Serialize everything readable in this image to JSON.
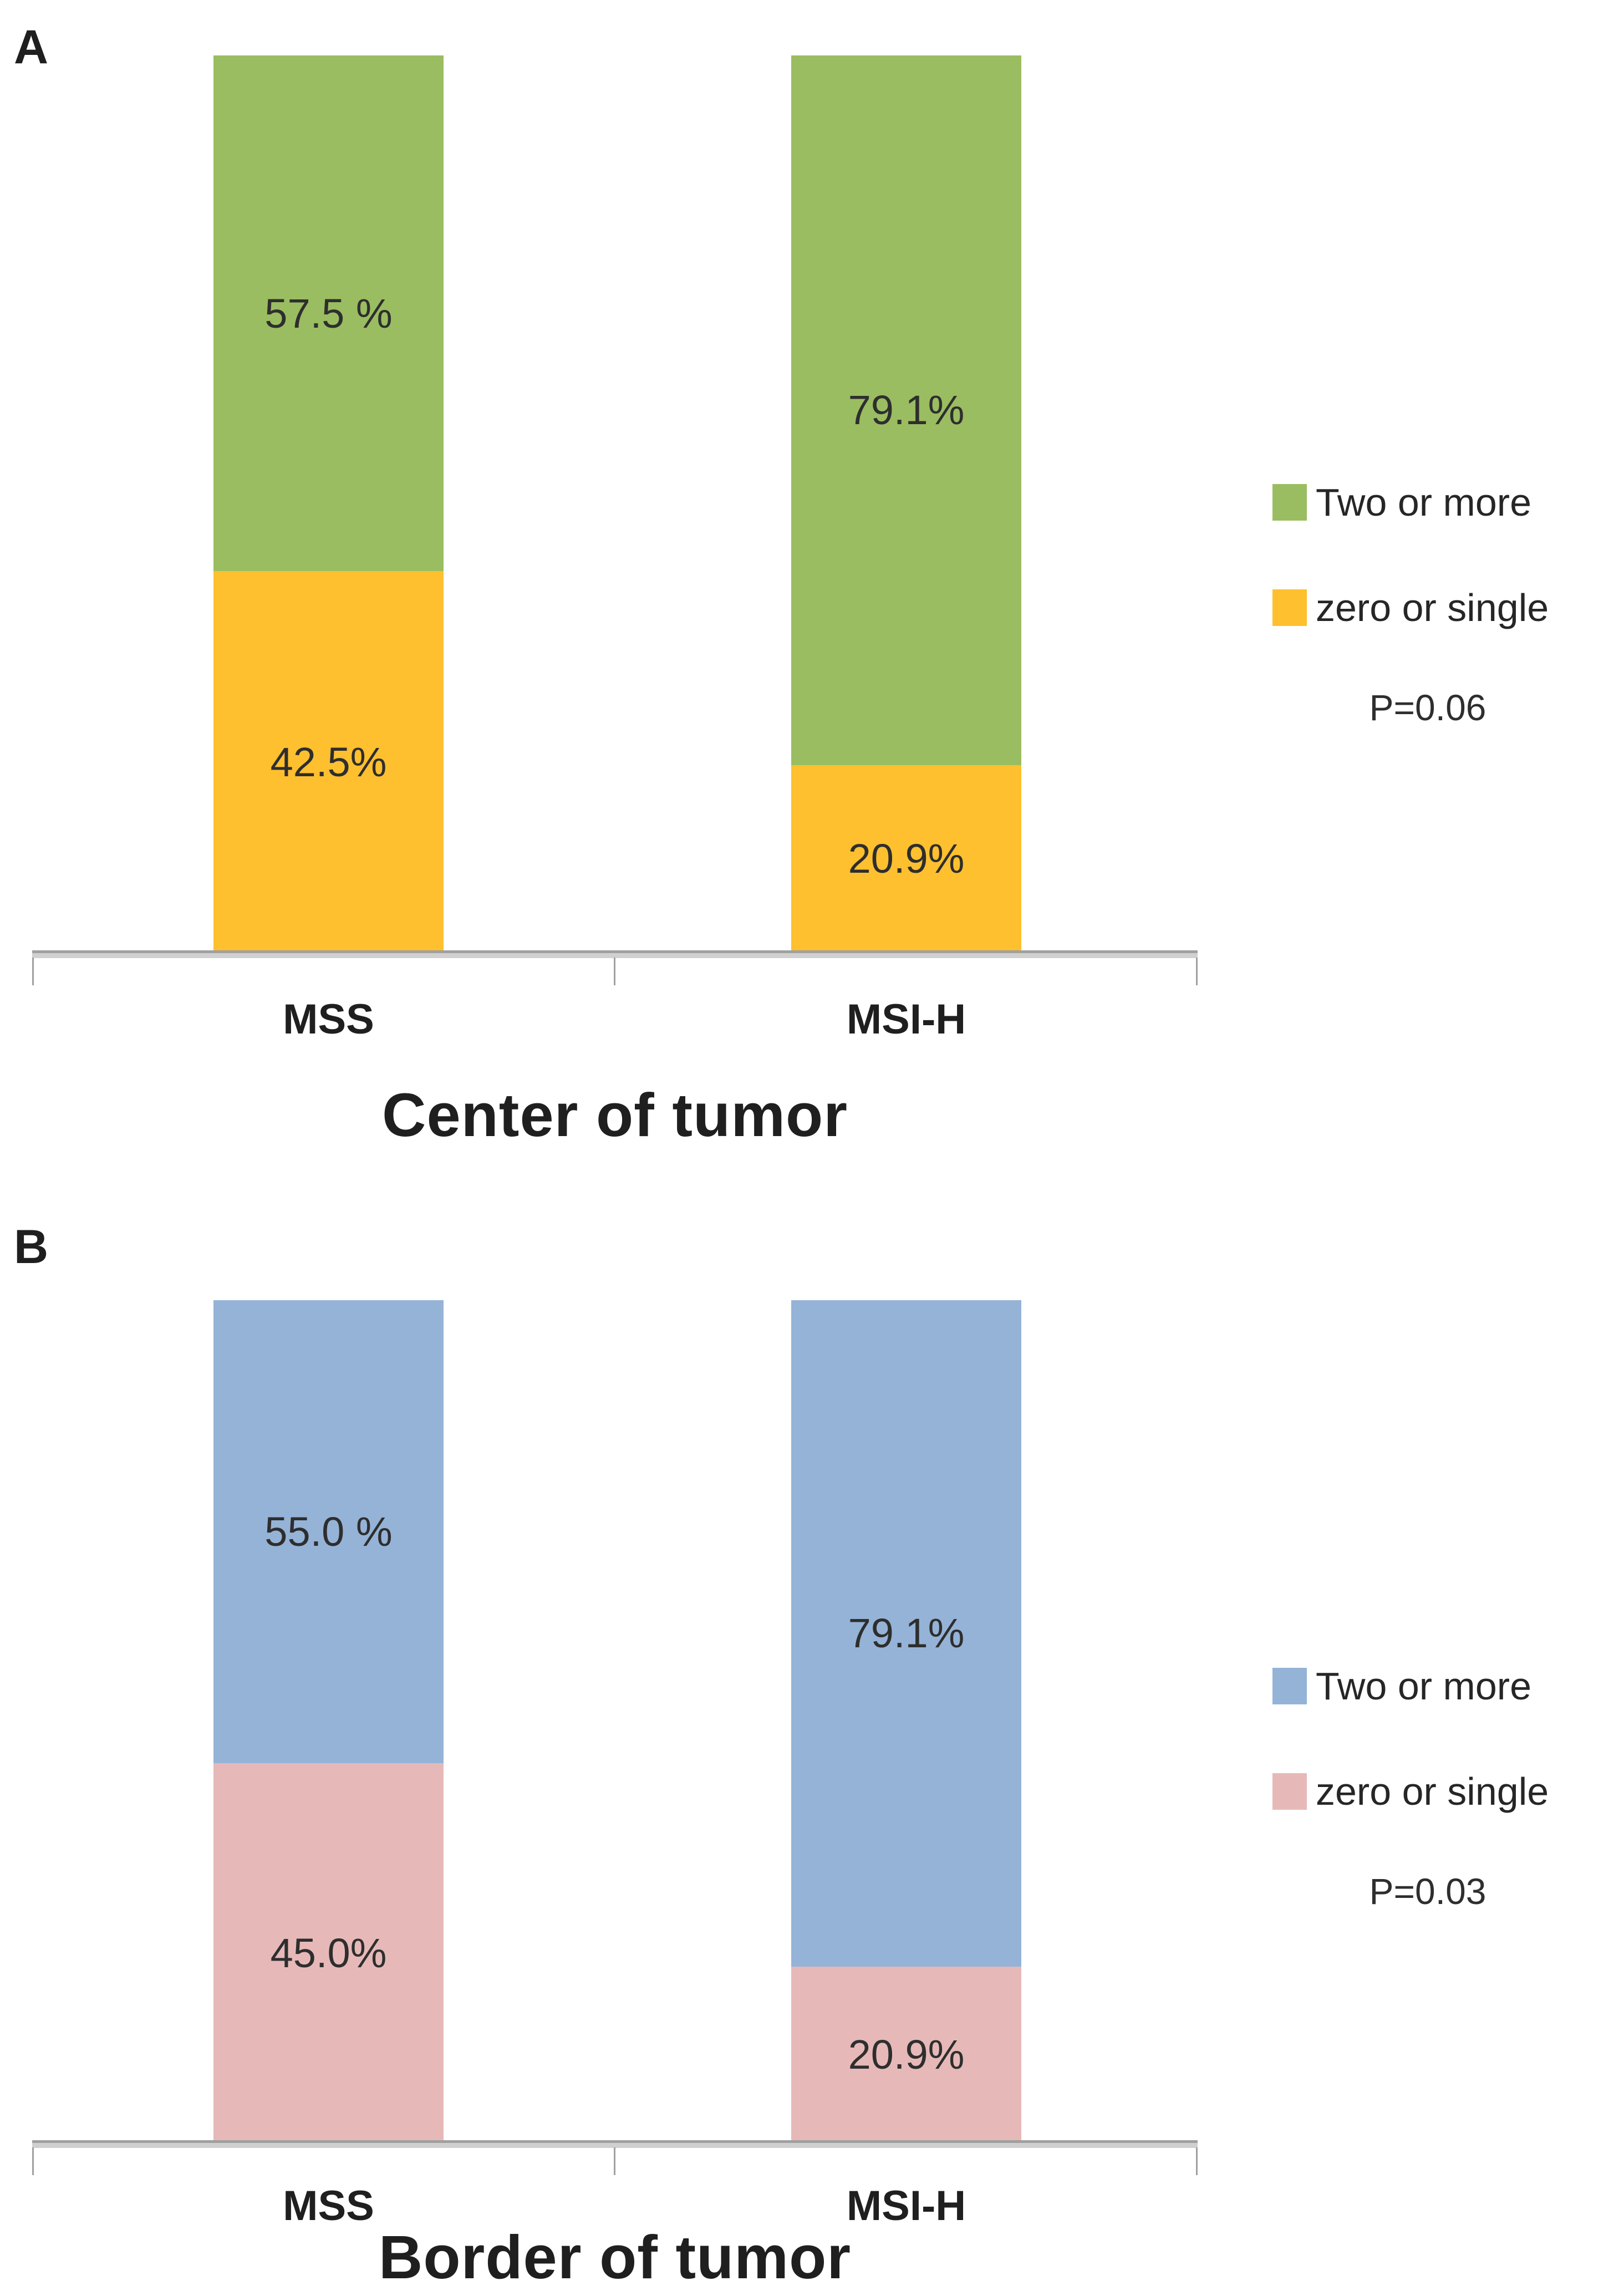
{
  "figure": {
    "background": "#ffffff",
    "text_color": "#262626",
    "axis_color": "#a0a0a0"
  },
  "chart_data": [
    {
      "type": "bar",
      "stacked": true,
      "orientation": "vertical",
      "panel_label": "A",
      "title": "Center of tumor",
      "categories": [
        "MSS",
        "MSI-H"
      ],
      "series": [
        {
          "name": "Two or more",
          "color": "#9abd61",
          "values": [
            57.5,
            79.1
          ],
          "labels": [
            "57.5 %",
            "79.1%"
          ]
        },
        {
          "name": "zero or single",
          "color": "#fec02e",
          "values": [
            42.5,
            20.9
          ],
          "labels": [
            "42.5%",
            "20.9%"
          ]
        }
      ],
      "legend_position": "right",
      "p_value": "P=0.06",
      "ylim": [
        0,
        100
      ],
      "grid": false
    },
    {
      "type": "bar",
      "stacked": true,
      "orientation": "vertical",
      "panel_label": "B",
      "title": "Border of tumor",
      "categories": [
        "MSS",
        "MSI-H"
      ],
      "series": [
        {
          "name": "Two or more",
          "color": "#95b3d7",
          "values": [
            55.0,
            79.1
          ],
          "labels": [
            "55.0 %",
            "79.1%"
          ]
        },
        {
          "name": "zero or single",
          "color": "#e6b9b8",
          "values": [
            45.0,
            20.9
          ],
          "labels": [
            "45.0%",
            "20.9%"
          ]
        }
      ],
      "legend_position": "right",
      "p_value": "P=0.03",
      "ylim": [
        0,
        100
      ],
      "grid": false
    }
  ]
}
